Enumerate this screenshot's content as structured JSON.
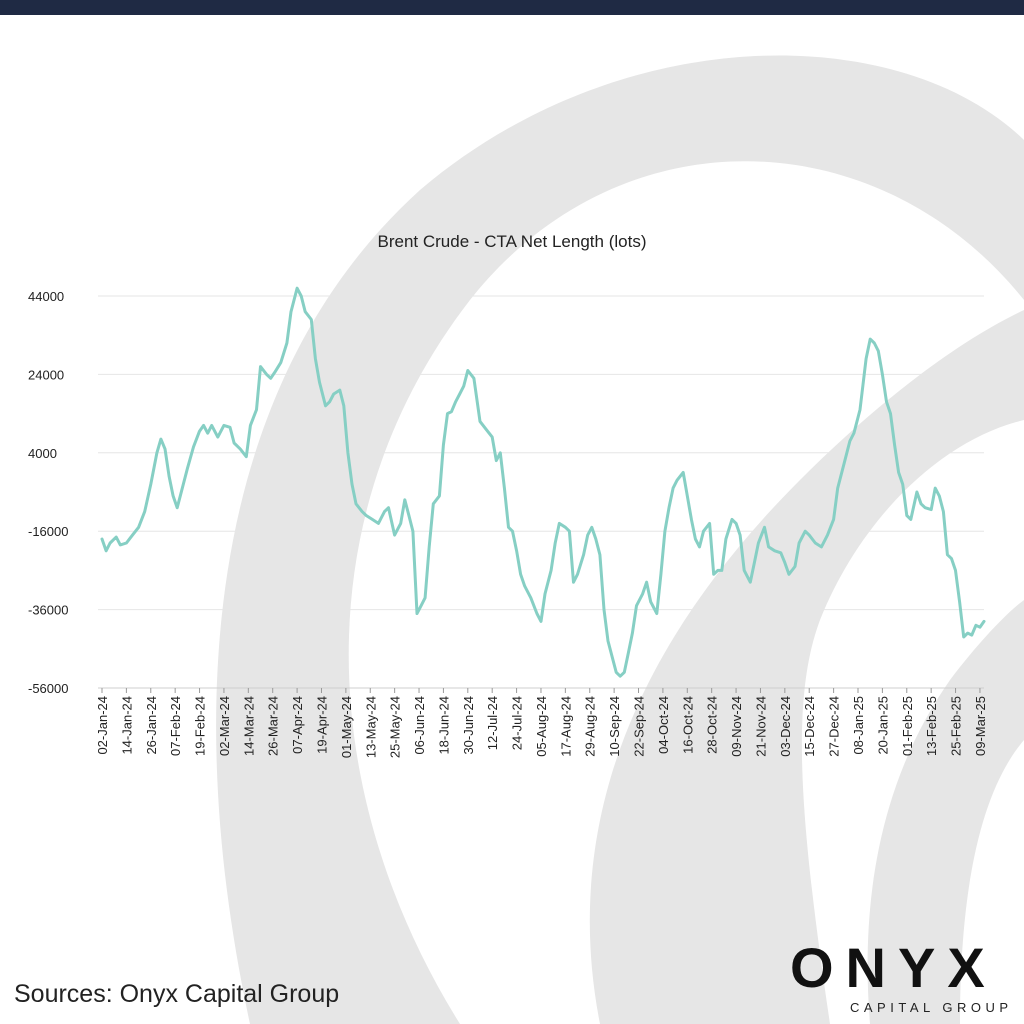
{
  "header": {
    "bar_color": "#1f2a44"
  },
  "source_note": "Sources:  Onyx Capital Group",
  "logo": {
    "word": "ONYX",
    "subtitle": "CAPITAL GROUP",
    "icon": "flame-icon"
  },
  "colors": {
    "line": "#86cfc4",
    "grid": "#e6e6e6",
    "background_art": "#e3e3e3"
  },
  "chart_data": {
    "type": "line",
    "title": "Brent Crude - CTA Net Length (lots)",
    "xlabel": "",
    "ylabel": "",
    "ylim": [
      -56000,
      44000
    ],
    "y_ticks": [
      44000,
      24000,
      4000,
      -16000,
      -36000,
      -56000
    ],
    "y_tick_labels": [
      "44000",
      "24000",
      "4000",
      "-16000",
      "-36000",
      "-56000"
    ],
    "x_tick_labels": [
      "02-Jan-24",
      "14-Jan-24",
      "26-Jan-24",
      "07-Feb-24",
      "19-Feb-24",
      "02-Mar-24",
      "14-Mar-24",
      "26-Mar-24",
      "07-Apr-24",
      "19-Apr-24",
      "01-May-24",
      "13-May-24",
      "25-May-24",
      "06-Jun-24",
      "18-Jun-24",
      "30-Jun-24",
      "12-Jul-24",
      "24-Jul-24",
      "05-Aug-24",
      "17-Aug-24",
      "29-Aug-24",
      "10-Sep-24",
      "22-Sep-24",
      "04-Oct-24",
      "16-Oct-24",
      "28-Oct-24",
      "09-Nov-24",
      "21-Nov-24",
      "03-Dec-24",
      "15-Dec-24",
      "27-Dec-24",
      "08-Jan-25",
      "20-Jan-25",
      "01-Feb-25",
      "13-Feb-25",
      "25-Feb-25",
      "09-Mar-25"
    ],
    "grid": "horizontal",
    "legend": "none",
    "series": [
      {
        "color": "#86cfc4",
        "points": [
          [
            "02-Jan-24",
            -18000
          ],
          [
            "04-Jan-24",
            -21000
          ],
          [
            "06-Jan-24",
            -19000
          ],
          [
            "09-Jan-24",
            -17500
          ],
          [
            "11-Jan-24",
            -19500
          ],
          [
            "14-Jan-24",
            -19000
          ],
          [
            "17-Jan-24",
            -17000
          ],
          [
            "20-Jan-24",
            -15000
          ],
          [
            "23-Jan-24",
            -11000
          ],
          [
            "26-Jan-24",
            -4000
          ],
          [
            "29-Jan-24",
            4000
          ],
          [
            "31-Jan-24",
            7500
          ],
          [
            "02-Feb-24",
            5000
          ],
          [
            "04-Feb-24",
            -2000
          ],
          [
            "06-Feb-24",
            -7000
          ],
          [
            "08-Feb-24",
            -10000
          ],
          [
            "10-Feb-24",
            -6000
          ],
          [
            "13-Feb-24",
            0
          ],
          [
            "16-Feb-24",
            5500
          ],
          [
            "19-Feb-24",
            9500
          ],
          [
            "21-Feb-24",
            11000
          ],
          [
            "23-Feb-24",
            9000
          ],
          [
            "25-Feb-24",
            11000
          ],
          [
            "28-Feb-24",
            8000
          ],
          [
            "02-Mar-24",
            11000
          ],
          [
            "05-Mar-24",
            10500
          ],
          [
            "07-Mar-24",
            6500
          ],
          [
            "10-Mar-24",
            5000
          ],
          [
            "13-Mar-24",
            3000
          ],
          [
            "15-Mar-24",
            11000
          ],
          [
            "18-Mar-24",
            15000
          ],
          [
            "20-Mar-24",
            26000
          ],
          [
            "23-Mar-24",
            24000
          ],
          [
            "25-Mar-24",
            23000
          ],
          [
            "27-Mar-24",
            24500
          ],
          [
            "30-Mar-24",
            27000
          ],
          [
            "02-Apr-24",
            32000
          ],
          [
            "04-Apr-24",
            40000
          ],
          [
            "07-Apr-24",
            46000
          ],
          [
            "09-Apr-24",
            44000
          ],
          [
            "11-Apr-24",
            40000
          ],
          [
            "14-Apr-24",
            38000
          ],
          [
            "16-Apr-24",
            28000
          ],
          [
            "18-Apr-24",
            22000
          ],
          [
            "21-Apr-24",
            16000
          ],
          [
            "23-Apr-24",
            17000
          ],
          [
            "25-Apr-24",
            19000
          ],
          [
            "28-Apr-24",
            20000
          ],
          [
            "30-Apr-24",
            16000
          ],
          [
            "02-May-24",
            4000
          ],
          [
            "04-May-24",
            -4000
          ],
          [
            "06-May-24",
            -9000
          ],
          [
            "09-May-24",
            -11000
          ],
          [
            "11-May-24",
            -12000
          ],
          [
            "14-May-24",
            -13000
          ],
          [
            "17-May-24",
            -14000
          ],
          [
            "20-May-24",
            -11000
          ],
          [
            "22-May-24",
            -10000
          ],
          [
            "25-May-24",
            -17000
          ],
          [
            "28-May-24",
            -14000
          ],
          [
            "30-May-24",
            -8000
          ],
          [
            "01-Jun-24",
            -12000
          ],
          [
            "03-Jun-24",
            -16000
          ],
          [
            "05-Jun-24",
            -37000
          ],
          [
            "07-Jun-24",
            -35000
          ],
          [
            "09-Jun-24",
            -33000
          ],
          [
            "11-Jun-24",
            -20000
          ],
          [
            "13-Jun-24",
            -9000
          ],
          [
            "16-Jun-24",
            -7000
          ],
          [
            "18-Jun-24",
            6000
          ],
          [
            "20-Jun-24",
            14000
          ],
          [
            "22-Jun-24",
            14500
          ],
          [
            "24-Jun-24",
            17000
          ],
          [
            "26-Jun-24",
            19000
          ],
          [
            "28-Jun-24",
            21000
          ],
          [
            "30-Jun-24",
            25000
          ],
          [
            "03-Jul-24",
            23000
          ],
          [
            "06-Jul-24",
            12000
          ],
          [
            "09-Jul-24",
            10000
          ],
          [
            "12-Jul-24",
            8000
          ],
          [
            "14-Jul-24",
            2000
          ],
          [
            "16-Jul-24",
            4000
          ],
          [
            "18-Jul-24",
            -5000
          ],
          [
            "20-Jul-24",
            -15000
          ],
          [
            "22-Jul-24",
            -16000
          ],
          [
            "24-Jul-24",
            -21000
          ],
          [
            "26-Jul-24",
            -27000
          ],
          [
            "28-Jul-24",
            -30000
          ],
          [
            "31-Jul-24",
            -33000
          ],
          [
            "03-Aug-24",
            -37000
          ],
          [
            "05-Aug-24",
            -39000
          ],
          [
            "07-Aug-24",
            -32000
          ],
          [
            "10-Aug-24",
            -26000
          ],
          [
            "12-Aug-24",
            -19000
          ],
          [
            "14-Aug-24",
            -14000
          ],
          [
            "17-Aug-24",
            -15000
          ],
          [
            "19-Aug-24",
            -16000
          ],
          [
            "21-Aug-24",
            -29000
          ],
          [
            "23-Aug-24",
            -27000
          ],
          [
            "26-Aug-24",
            -22000
          ],
          [
            "28-Aug-24",
            -17000
          ],
          [
            "30-Aug-24",
            -15000
          ],
          [
            "01-Sep-24",
            -18000
          ],
          [
            "03-Sep-24",
            -22000
          ],
          [
            "05-Sep-24",
            -36000
          ],
          [
            "07-Sep-24",
            -44000
          ],
          [
            "09-Sep-24",
            -48000
          ],
          [
            "11-Sep-24",
            -52000
          ],
          [
            "13-Sep-24",
            -53000
          ],
          [
            "15-Sep-24",
            -52000
          ],
          [
            "17-Sep-24",
            -47000
          ],
          [
            "19-Sep-24",
            -42000
          ],
          [
            "21-Sep-24",
            -35000
          ],
          [
            "24-Sep-24",
            -32000
          ],
          [
            "26-Sep-24",
            -29000
          ],
          [
            "28-Sep-24",
            -34000
          ],
          [
            "01-Oct-24",
            -37000
          ],
          [
            "03-Oct-24",
            -27000
          ],
          [
            "05-Oct-24",
            -16000
          ],
          [
            "07-Oct-24",
            -10000
          ],
          [
            "09-Oct-24",
            -5000
          ],
          [
            "11-Oct-24",
            -3000
          ],
          [
            "14-Oct-24",
            -1000
          ],
          [
            "16-Oct-24",
            -7000
          ],
          [
            "18-Oct-24",
            -13000
          ],
          [
            "20-Oct-24",
            -18000
          ],
          [
            "22-Oct-24",
            -20000
          ],
          [
            "24-Oct-24",
            -16000
          ],
          [
            "27-Oct-24",
            -14000
          ],
          [
            "29-Oct-24",
            -27000
          ],
          [
            "31-Oct-24",
            -26000
          ],
          [
            "02-Nov-24",
            -26000
          ],
          [
            "04-Nov-24",
            -18000
          ],
          [
            "07-Nov-24",
            -13000
          ],
          [
            "09-Nov-24",
            -14000
          ],
          [
            "11-Nov-24",
            -17000
          ],
          [
            "13-Nov-24",
            -26000
          ],
          [
            "16-Nov-24",
            -29000
          ],
          [
            "18-Nov-24",
            -24000
          ],
          [
            "20-Nov-24",
            -19000
          ],
          [
            "23-Nov-24",
            -15000
          ],
          [
            "25-Nov-24",
            -20000
          ],
          [
            "28-Nov-24",
            -21000
          ],
          [
            "01-Dec-24",
            -21500
          ],
          [
            "03-Dec-24",
            -24000
          ],
          [
            "05-Dec-24",
            -27000
          ],
          [
            "08-Dec-24",
            -25000
          ],
          [
            "10-Dec-24",
            -19000
          ],
          [
            "13-Dec-24",
            -16000
          ],
          [
            "15-Dec-24",
            -17000
          ],
          [
            "18-Dec-24",
            -19000
          ],
          [
            "21-Dec-24",
            -20000
          ],
          [
            "24-Dec-24",
            -17000
          ],
          [
            "27-Dec-24",
            -13000
          ],
          [
            "29-Dec-24",
            -5000
          ],
          [
            "01-Jan-25",
            1000
          ],
          [
            "04-Jan-25",
            7000
          ],
          [
            "06-Jan-25",
            9000
          ],
          [
            "09-Jan-25",
            15000
          ],
          [
            "12-Jan-25",
            28000
          ],
          [
            "14-Jan-25",
            33000
          ],
          [
            "16-Jan-25",
            32000
          ],
          [
            "18-Jan-25",
            30000
          ],
          [
            "20-Jan-25",
            24000
          ],
          [
            "22-Jan-25",
            17000
          ],
          [
            "24-Jan-25",
            14000
          ],
          [
            "26-Jan-25",
            6000
          ],
          [
            "28-Jan-25",
            -1000
          ],
          [
            "30-Jan-25",
            -4000
          ],
          [
            "01-Feb-25",
            -12000
          ],
          [
            "03-Feb-25",
            -13000
          ],
          [
            "06-Feb-25",
            -6000
          ],
          [
            "08-Feb-25",
            -9000
          ],
          [
            "10-Feb-25",
            -10000
          ],
          [
            "13-Feb-25",
            -10500
          ],
          [
            "15-Feb-25",
            -5000
          ],
          [
            "17-Feb-25",
            -7000
          ],
          [
            "19-Feb-25",
            -11000
          ],
          [
            "21-Feb-25",
            -22000
          ],
          [
            "23-Feb-25",
            -23000
          ],
          [
            "25-Feb-25",
            -26000
          ],
          [
            "27-Feb-25",
            -34000
          ],
          [
            "01-Mar-25",
            -43000
          ],
          [
            "03-Mar-25",
            -42000
          ],
          [
            "05-Mar-25",
            -42500
          ],
          [
            "07-Mar-25",
            -40000
          ],
          [
            "09-Mar-25",
            -40500
          ],
          [
            "11-Mar-25",
            -39000
          ]
        ]
      }
    ]
  }
}
